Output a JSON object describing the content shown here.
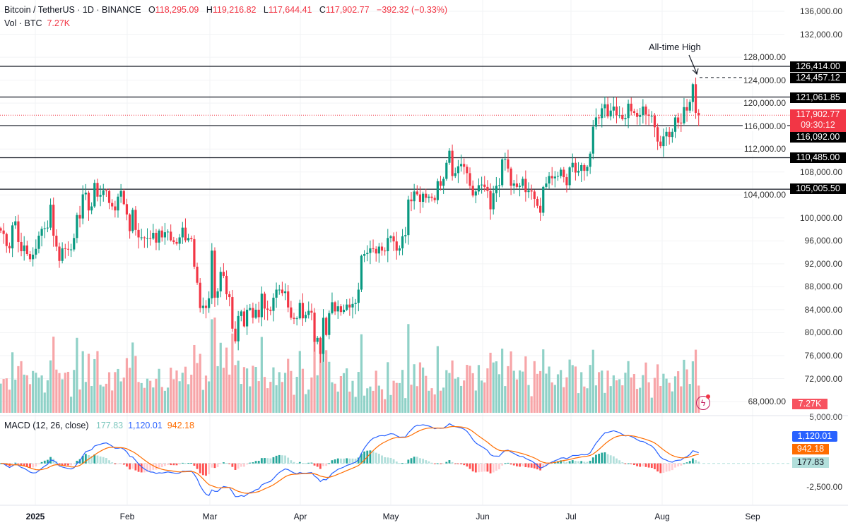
{
  "header": {
    "symbol": "Bitcoin / TetherUS · 1D · BINANCE",
    "o_label": "O",
    "o": "118,295.09",
    "h_label": "H",
    "h": "119,216.82",
    "l_label": "L",
    "l": "117,644.41",
    "c_label": "C",
    "c": "117,902.77",
    "change": "−392.32 (−0.33%)",
    "vol_label": "Vol · BTC",
    "vol": "7.27K"
  },
  "annotation": "All-time High",
  "levels": [
    {
      "value": 126414.0,
      "label": "126,414.00"
    },
    {
      "value": 121061.85,
      "label": "121,061.85"
    },
    {
      "value": 116092.0,
      "label": "116,092.00"
    },
    {
      "value": 110485.0,
      "label": "110,485.00"
    },
    {
      "value": 105005.5,
      "label": "105,005.50"
    }
  ],
  "ath": {
    "value": 124457.12,
    "label": "124,457.12"
  },
  "current": {
    "value": 117902.77,
    "label": "117,902.77",
    "countdown": "09:30:12"
  },
  "volume_tag": "7.27K",
  "macd": {
    "legend": "MACD (12, 26, close)",
    "hist": "177.83",
    "macd": "1,120.01",
    "signal": "942.18",
    "axis": [
      "5,000.00",
      "-2,500.00"
    ]
  },
  "colors": {
    "up": "#089981",
    "down": "#f23645",
    "macd": "#2962ff",
    "signal": "#ff6d00",
    "hist": "#b2dfdb"
  },
  "chart_data": {
    "type": "candlestick",
    "title": "Bitcoin / TetherUS · 1D · BINANCE",
    "start_date": "2024-12-20",
    "closes": [
      97.8,
      97.2,
      95.1,
      94.7,
      98.7,
      99.4,
      95.8,
      94.2,
      95.2,
      93.7,
      92.8,
      93.6,
      94.6,
      96.9,
      98.1,
      98.2,
      98.3,
      102.3,
      96.9,
      95.0,
      92.5,
      94.7,
      94.6,
      94.5,
      94.5,
      96.5,
      100.5,
      99.9,
      104.1,
      104.4,
      101.3,
      102.0,
      106.1,
      103.7,
      104.0,
      104.8,
      104.7,
      102.6,
      102.0,
      101.3,
      103.7,
      104.7,
      102.4,
      100.6,
      97.7,
      101.4,
      97.9,
      96.6,
      96.6,
      96.5,
      96.5,
      96.4,
      97.4,
      95.7,
      97.8,
      96.6,
      97.5,
      97.6,
      96.1,
      95.8,
      95.5,
      96.6,
      98.3,
      96.1,
      96.5,
      96.3,
      91.5,
      88.7,
      84.3,
      84.7,
      84.3,
      86.0,
      94.3,
      86.1,
      87.2,
      90.6,
      89.9,
      86.7,
      86.2,
      80.7,
      78.5,
      82.9,
      83.7,
      81.1,
      84.0,
      84.3,
      82.6,
      84.0,
      82.7,
      86.8,
      84.2,
      84.0,
      83.8,
      86.1,
      87.5,
      87.5,
      86.9,
      87.2,
      84.4,
      82.6,
      82.4,
      82.5,
      85.2,
      82.5,
      83.1,
      83.8,
      83.5,
      78.4,
      79.1,
      76.3,
      82.6,
      79.6,
      83.4,
      85.3,
      83.7,
      84.6,
      83.6,
      84.0,
      84.9,
      84.4,
      85.0,
      85.2,
      87.5,
      93.4,
      93.7,
      93.9,
      94.7,
      94.6,
      93.8,
      95.0,
      94.3,
      94.2,
      96.5,
      96.8,
      95.9,
      94.3,
      94.7,
      96.8,
      97.0,
      103.2,
      102.9,
      104.6,
      104.1,
      102.8,
      104.2,
      103.5,
      103.7,
      103.5,
      103.1,
      106.4,
      105.6,
      106.8,
      109.6,
      111.7,
      107.3,
      107.8,
      109.0,
      109.4,
      108.9,
      107.8,
      105.6,
      103.9,
      104.6,
      105.7,
      105.8,
      105.4,
      104.7,
      101.5,
      104.3,
      105.6,
      105.7,
      110.2,
      110.2,
      108.6,
      105.6,
      106.0,
      105.4,
      105.6,
      106.8,
      104.5,
      104.8,
      104.6,
      103.3,
      102.1,
      100.9,
      105.4,
      106.0,
      107.3,
      106.9,
      107.2,
      107.3,
      108.4,
      107.1,
      105.7,
      108.8,
      109.6,
      107.9,
      108.2,
      109.2,
      108.2,
      108.9,
      111.2,
      115.9,
      117.5,
      117.4,
      119.1,
      119.8,
      117.7,
      118.7,
      119.4,
      117.9,
      117.9,
      117.2,
      117.4,
      119.9,
      118.6,
      118.3,
      117.6,
      117.9,
      119.4,
      118.0,
      117.8,
      117.8,
      115.8,
      113.3,
      112.5,
      114.2,
      115.0,
      114.1,
      115.0,
      117.5,
      116.6,
      116.5,
      119.3,
      118.7,
      120.2,
      123.3,
      118.3,
      117.9
    ],
    "close_units": "thousand USDT",
    "y_ticks": [
      "136,000.00",
      "132,000.00",
      "128,000.00",
      "124,000.00",
      "120,000.00",
      "116,000.00",
      "112,000.00",
      "108,000.00",
      "104,000.00",
      "100,000.00",
      "96,000.00",
      "92,000.00",
      "88,000.00",
      "84,000.00",
      "80,000.00",
      "76,000.00",
      "72,000.00",
      "68,000.00"
    ],
    "x_ticks": [
      "2025",
      "Feb",
      "Mar",
      "Apr",
      "May",
      "Jun",
      "Jul",
      "Aug",
      "Sep"
    ],
    "ylim": [
      68000,
      136000
    ]
  }
}
